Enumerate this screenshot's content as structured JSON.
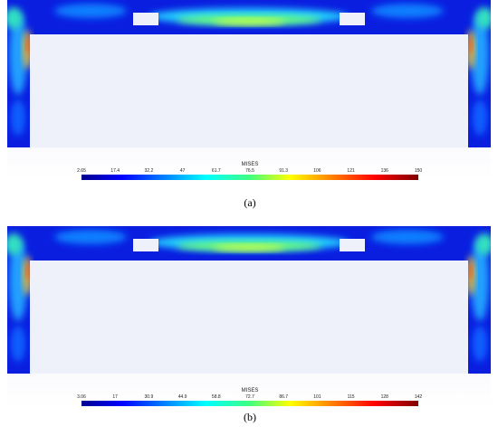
{
  "panels": [
    {
      "label": "(a)",
      "legend_title": "MISES",
      "ticks": [
        "2.65",
        "17.4",
        "32.2",
        "47",
        "61.7",
        "76.5",
        "91.3",
        "106",
        "121",
        "136",
        "150"
      ]
    },
    {
      "label": "(b)",
      "legend_title": "MISES",
      "ticks": [
        "3.06",
        "17",
        "30.9",
        "44.9",
        "58.8",
        "72.7",
        "86.7",
        "101",
        "115",
        "128",
        "142"
      ]
    }
  ]
}
